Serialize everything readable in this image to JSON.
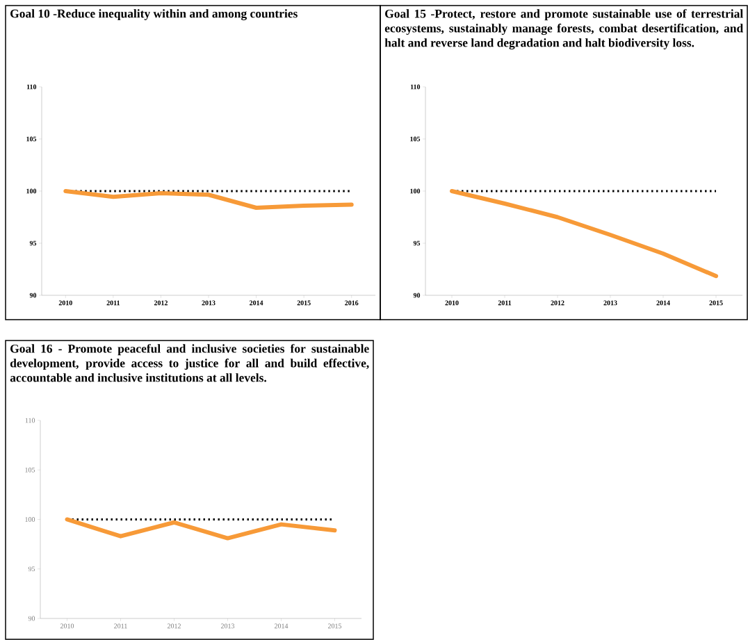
{
  "chart_data": [
    {
      "type": "line",
      "title": "Goal 10 -Reduce inequality within and among countries",
      "categories": [
        "2010",
        "2011",
        "2012",
        "2013",
        "2014",
        "2015",
        "2016"
      ],
      "values": [
        100,
        99.45,
        99.8,
        99.65,
        98.4,
        98.6,
        98.7
      ],
      "color": "#f79a38",
      "ylim": [
        90,
        110
      ],
      "yticks": [
        90,
        95,
        100,
        105,
        110
      ],
      "ref_lines": [
        {
          "axis": "y",
          "value": 100,
          "line_style": "dotted",
          "color": "#000000"
        }
      ],
      "grid": false
    },
    {
      "type": "line",
      "title": "Goal 15 -Protect, restore and promote sustainable use of terrestrial ecosystems, sustainably manage forests, combat desertification, and halt and reverse land degradation and halt biodiversity loss.",
      "categories": [
        "2010",
        "2011",
        "2012",
        "2013",
        "2014",
        "2015"
      ],
      "values": [
        100,
        98.8,
        97.5,
        95.8,
        94.0,
        91.85
      ],
      "color": "#f79a38",
      "ylim": [
        90,
        110
      ],
      "yticks": [
        90,
        95,
        100,
        105,
        110
      ],
      "ref_lines": [
        {
          "axis": "y",
          "value": 100,
          "line_style": "dotted",
          "color": "#000000"
        }
      ],
      "grid": false
    },
    {
      "type": "line",
      "title": "Goal 16 - Promote peaceful and inclusive societies for sustainable development, provide access to justice for all and build effective, accountable and inclusive institutions at all levels.",
      "categories": [
        "2010",
        "2011",
        "2012",
        "2013",
        "2014",
        "2015"
      ],
      "values": [
        100,
        98.3,
        99.7,
        98.1,
        99.5,
        98.9
      ],
      "color": "#f79a38",
      "ylim": [
        90,
        110
      ],
      "yticks": [
        90,
        95,
        100,
        105,
        110
      ],
      "ref_lines": [
        {
          "axis": "y",
          "value": 100,
          "line_style": "dotted",
          "color": "#000000"
        }
      ],
      "grid": false
    }
  ]
}
